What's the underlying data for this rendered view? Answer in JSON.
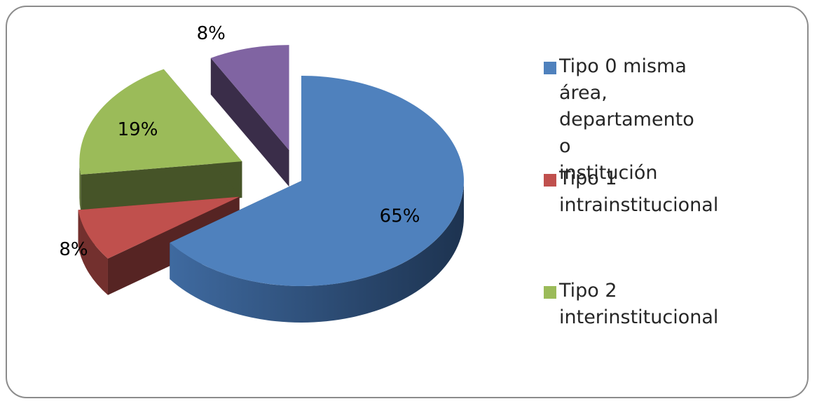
{
  "chart_data": {
    "type": "pie",
    "categories": [
      "Tipo 0 misma área, departamento o institución",
      "Tipo 1 intrainstitucional",
      "Tipo 2 interinstitucional",
      ""
    ],
    "values": [
      65,
      8,
      19,
      8
    ],
    "data_labels": [
      "65%",
      "8%",
      "19%",
      "8%"
    ],
    "colors": [
      "#4f81bd",
      "#c0504d",
      "#9bbb59",
      "#8064a2"
    ],
    "legend_position": "right",
    "exploded": true,
    "style": "3d"
  },
  "legend": {
    "items": [
      {
        "lines": "Tipo 0 misma área,\ndepartamento o\ninstitución",
        "color": "#4f81bd"
      },
      {
        "lines": "Tipo 1 intrainstitucional",
        "color": "#c0504d"
      },
      {
        "lines": "Tipo 2\ninterinstitucional",
        "color": "#9bbb59"
      }
    ]
  }
}
